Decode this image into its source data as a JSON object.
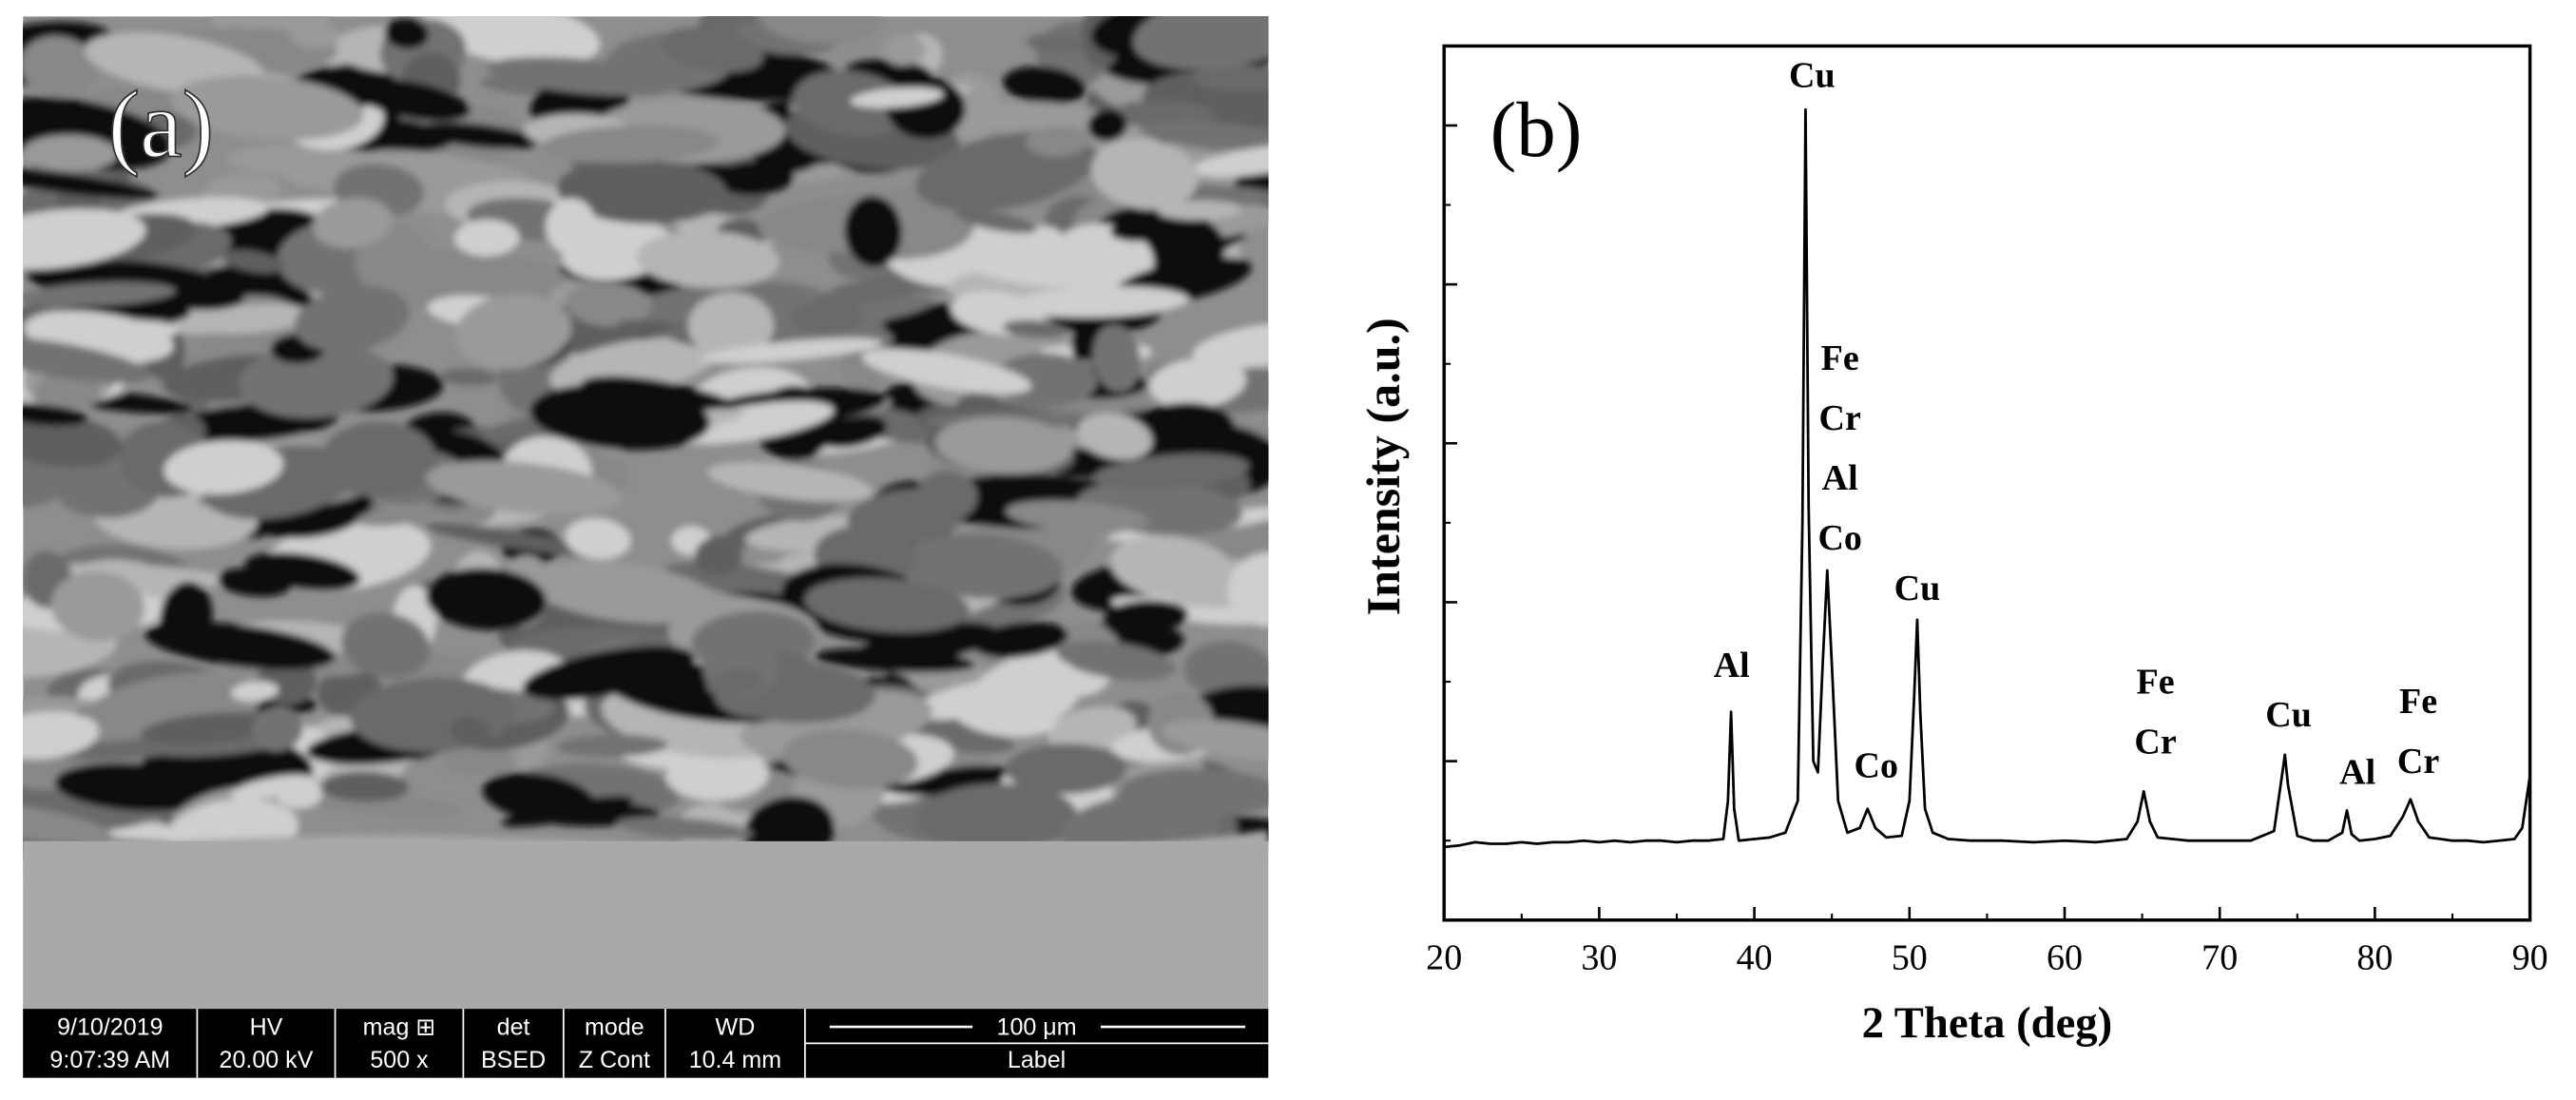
{
  "image_panel": {
    "label": "(a)",
    "info_bar": {
      "date": "9/10/2019",
      "time": "9:07:39 AM",
      "hv_label": "HV",
      "hv": "20.00 kV",
      "mag_label": "mag ⊞",
      "mag": "500 x",
      "det_label": "det",
      "det": "BSED",
      "mode_label": "mode",
      "mode": "Z Cont",
      "wd_label": "WD",
      "wd": "10.4 mm",
      "scale": "100 μm",
      "label": "Label"
    }
  },
  "chart_data": {
    "type": "line",
    "panel_label": "(b)",
    "x_label": "2 Theta (deg)",
    "y_label": "Intensity (a.u.)",
    "xlim": [
      20,
      90
    ],
    "xticks": [
      20,
      30,
      40,
      50,
      60,
      70,
      80,
      90
    ],
    "xminorticks": [
      25,
      35,
      45,
      55,
      65,
      75,
      85
    ],
    "ylim": [
      0,
      5.5
    ],
    "yticks": [
      1,
      2,
      3,
      4,
      5
    ],
    "yminorticks": [
      0.5,
      1.5,
      2.5,
      3.5,
      4.5
    ],
    "color": "#000000",
    "x": [
      20,
      21,
      22,
      23,
      24,
      25,
      26,
      27,
      28,
      29,
      30,
      31,
      32,
      33,
      34,
      35,
      36,
      37,
      38,
      38.3,
      38.5,
      38.7,
      39,
      40,
      41,
      42,
      42.8,
      43.1,
      43.3,
      43.5,
      43.8,
      44.1,
      44.4,
      44.7,
      45.0,
      45.4,
      46,
      46.8,
      47.3,
      47.8,
      48.5,
      49.5,
      50.0,
      50.3,
      50.5,
      50.7,
      51.0,
      51.5,
      52.5,
      54,
      56,
      58,
      60,
      62,
      64,
      64.7,
      65.1,
      65.5,
      66,
      68,
      70,
      72,
      73.5,
      74.0,
      74.2,
      74.4,
      75,
      76,
      77,
      77.9,
      78.2,
      78.5,
      79,
      80,
      81,
      81.8,
      82.3,
      82.8,
      83.5,
      85,
      86,
      87,
      88,
      89,
      89.5,
      90
    ],
    "values": [
      0.46,
      0.47,
      0.49,
      0.48,
      0.48,
      0.49,
      0.48,
      0.49,
      0.49,
      0.5,
      0.49,
      0.5,
      0.49,
      0.5,
      0.5,
      0.49,
      0.5,
      0.5,
      0.51,
      0.75,
      1.31,
      0.7,
      0.5,
      0.51,
      0.52,
      0.55,
      0.75,
      2.5,
      5.1,
      2.6,
      1.0,
      0.93,
      1.6,
      2.2,
      1.6,
      0.75,
      0.55,
      0.58,
      0.7,
      0.58,
      0.52,
      0.53,
      0.75,
      1.4,
      1.89,
      1.3,
      0.7,
      0.55,
      0.51,
      0.5,
      0.5,
      0.49,
      0.5,
      0.49,
      0.51,
      0.62,
      0.81,
      0.62,
      0.52,
      0.5,
      0.5,
      0.5,
      0.56,
      0.9,
      1.04,
      0.85,
      0.53,
      0.5,
      0.5,
      0.55,
      0.69,
      0.54,
      0.5,
      0.51,
      0.53,
      0.65,
      0.76,
      0.62,
      0.52,
      0.5,
      0.5,
      0.49,
      0.5,
      0.51,
      0.58,
      0.91
    ],
    "annotations": [
      {
        "lines": [
          "Cu"
        ]
      },
      {
        "lines": [
          "Al"
        ]
      },
      {
        "lines": [
          "Fe",
          "Cr",
          "Al",
          "Co"
        ]
      },
      {
        "lines": [
          "Co"
        ]
      },
      {
        "lines": [
          "Cu"
        ]
      },
      {
        "lines": [
          "Fe",
          "Cr"
        ]
      },
      {
        "lines": [
          "Cu"
        ]
      },
      {
        "lines": [
          "Al"
        ]
      },
      {
        "lines": [
          "Fe",
          "Cr"
        ]
      }
    ]
  }
}
